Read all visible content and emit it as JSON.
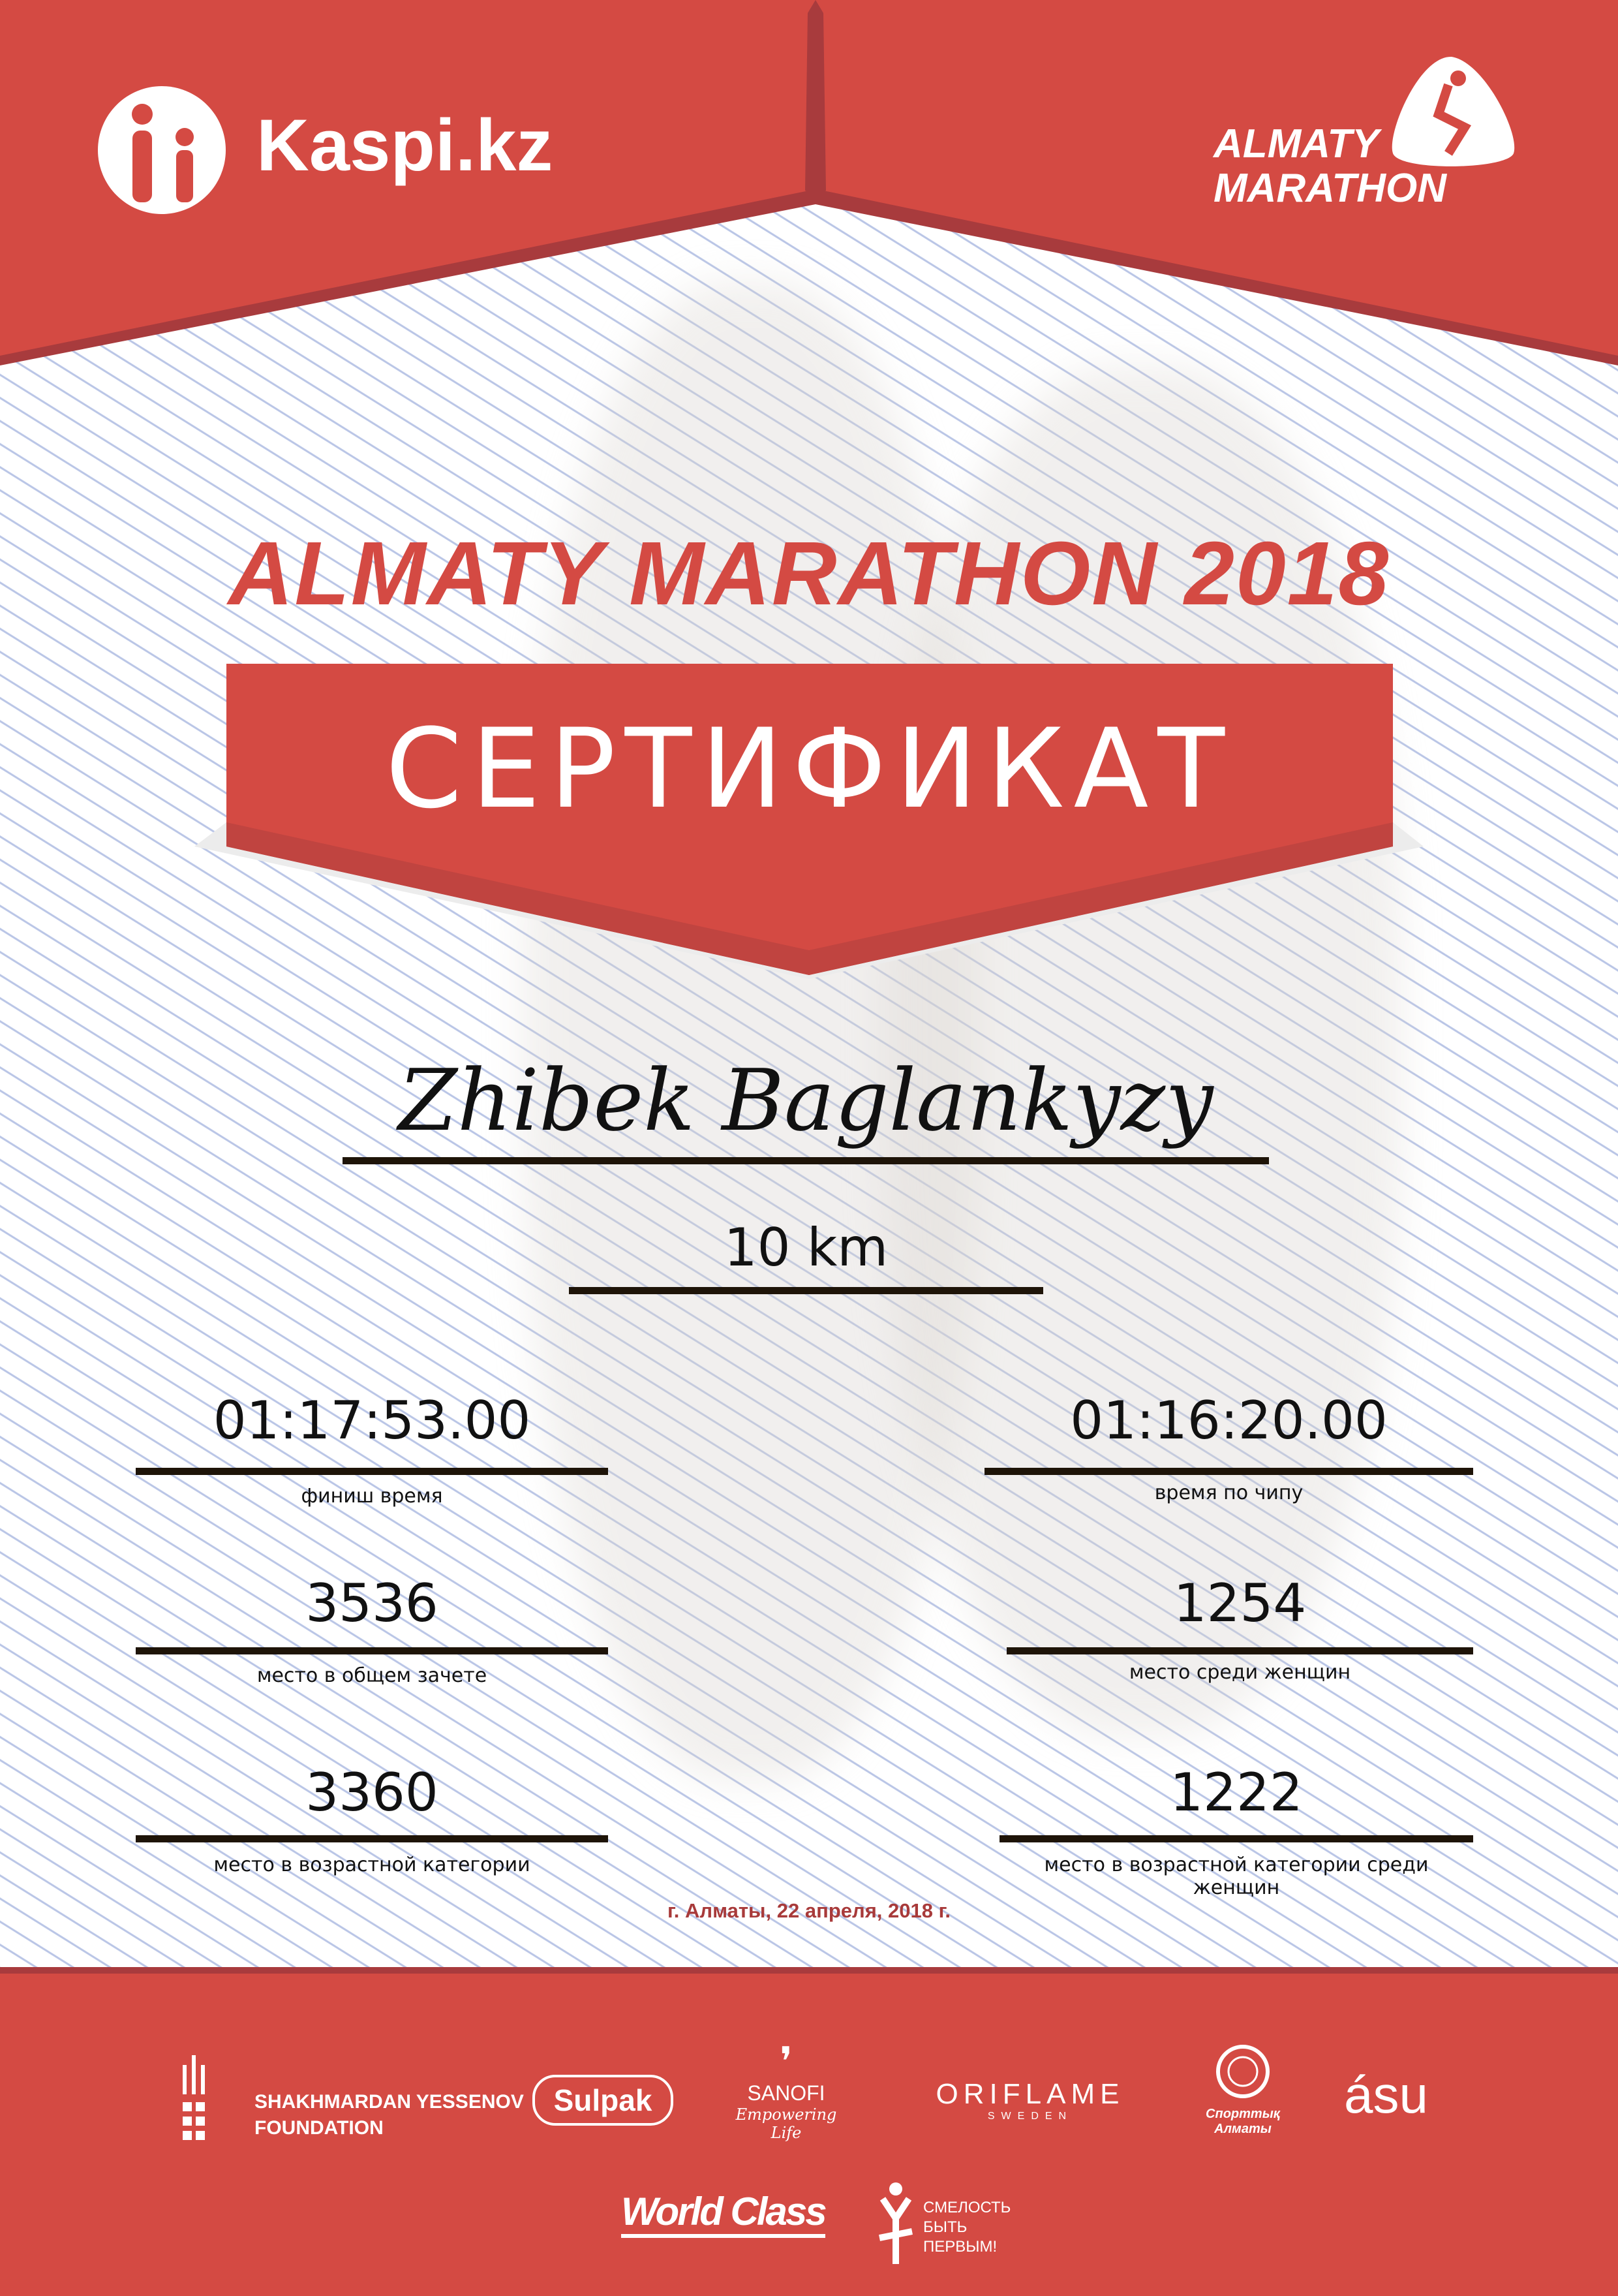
{
  "header": {
    "sponsor_logo": "Kaspi.kz",
    "event_logo_line1": "ALMATY",
    "event_logo_line2": "MARATHON"
  },
  "title": "ALMATY MARATHON 2018",
  "banner": "СЕРТИФИКАТ",
  "participant": {
    "name": "Zhibek Baglankyzy",
    "distance": "10 km"
  },
  "results": {
    "left": [
      {
        "value": "01:17:53.00",
        "label": "финиш время"
      },
      {
        "value": "3536",
        "label": "место в общем зачете"
      },
      {
        "value": "3360",
        "label": "место в возрастной категории"
      }
    ],
    "right": [
      {
        "value": "01:16:20.00",
        "label": "время по чипу"
      },
      {
        "value": "1254",
        "label": "место среди женщин"
      },
      {
        "value": "1222",
        "label": "место в возрастной категории среди женщин"
      }
    ]
  },
  "date_place": "г. Алматы, 22 апреля, 2018 г.",
  "sponsors": {
    "yessenov_line1": "SHAKHMARDAN YESSENOV",
    "yessenov_line2": "FOUNDATION",
    "sulpak": "Sulpak",
    "sanofi": "SANOFI",
    "sanofi_tagline": "Empowering Life",
    "oriflame": "ORIFLAME",
    "oriflame_sub": "SWEDEN",
    "sport_almaty": "Спорттық Алматы",
    "asu": "ásu",
    "world_class": "World Class",
    "smelost_line1": "СМЕЛОСТЬ",
    "smelost_line2": "БЫТЬ",
    "smelost_line3": "ПЕРВЫМ!"
  },
  "colors": {
    "brand_red": "#d44a43",
    "dark_red": "#a83b3d",
    "date_red": "#a83a3a",
    "line": "#1e1408"
  }
}
